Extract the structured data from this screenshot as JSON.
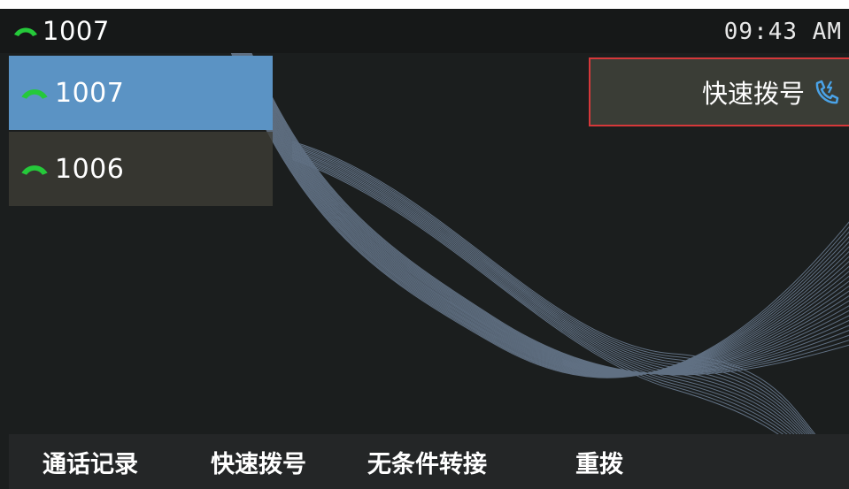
{
  "status_bar": {
    "line": "1007",
    "time": "09:43 AM"
  },
  "line_keys": [
    {
      "number": "1007"
    },
    {
      "number": "1006"
    }
  ],
  "speed_dial_panel": {
    "label": "快速拨号"
  },
  "softkeys": [
    {
      "label": "通话记录"
    },
    {
      "label": "快速拨号"
    },
    {
      "label": "无条件转接"
    },
    {
      "label": "重拨"
    }
  ],
  "colors": {
    "background": "#1b1e1e",
    "active_line": "#5b93c4",
    "handset_green": "#25c93a",
    "focus_border": "#d6383a",
    "speed_dial_icon": "#4aa3e8"
  },
  "icons": {
    "handset": "phone-handset-icon",
    "speed_dial": "speed-dial-icon"
  }
}
